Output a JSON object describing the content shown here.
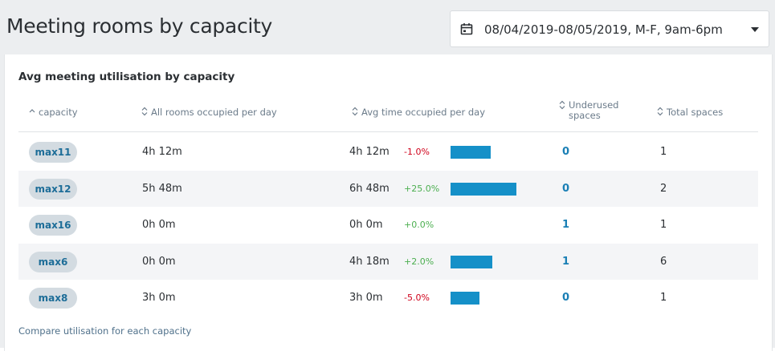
{
  "header": {
    "title": "Meeting rooms by capacity",
    "date_range": "08/04/2019-08/05/2019, M-F, 9am-6pm"
  },
  "card": {
    "title": "Avg meeting utilisation by capacity",
    "columns": [
      "capacity",
      "All rooms occupied per day",
      "Avg time occupied per day",
      "Underused spaces",
      "Total spaces"
    ],
    "rows": [
      {
        "capacity": "max11",
        "all_rooms": "4h 12m",
        "avg_time": "4h 12m",
        "change": "-1.0%",
        "underused": 0,
        "total": 1
      },
      {
        "capacity": "max12",
        "all_rooms": "5h 48m",
        "avg_time": "6h 48m",
        "change": "+25.0%",
        "underused": 0,
        "total": 2
      },
      {
        "capacity": "max16",
        "all_rooms": "0h 0m",
        "avg_time": "0h 0m",
        "change": "+0.0%",
        "underused": 1,
        "total": 1
      },
      {
        "capacity": "max6",
        "all_rooms": "0h 0m",
        "avg_time": "4h 18m",
        "change": "+2.0%",
        "underused": 1,
        "total": 6
      },
      {
        "capacity": "max8",
        "all_rooms": "3h 0m",
        "avg_time": "3h 0m",
        "change": "-5.0%",
        "underused": 0,
        "total": 1
      }
    ],
    "footer_link": "Compare utilisation for each capacity"
  }
}
